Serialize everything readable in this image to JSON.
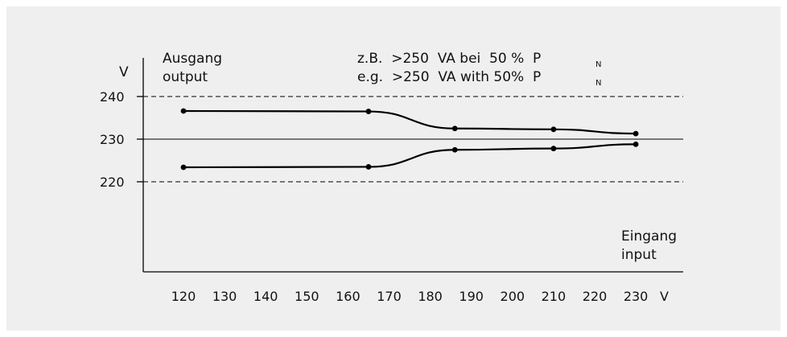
{
  "chart_data": {
    "type": "line",
    "title": "",
    "ylabel": "V",
    "xlabel": "V",
    "ylabel_lines": [
      "Ausgang",
      "output"
    ],
    "xlabel_lines": [
      "Eingang",
      "input"
    ],
    "annotation": {
      "line1": "z.B.  >250  VA bei  50 %  P",
      "line2": "e.g.  >250  VA with 50%  P",
      "subscript": "N"
    },
    "x_ticks": [
      120,
      130,
      140,
      150,
      160,
      170,
      180,
      190,
      200,
      210,
      220,
      230
    ],
    "y_ticks": [
      240,
      230,
      220
    ],
    "xlim": [
      115,
      235
    ],
    "ylim": [
      205,
      245
    ],
    "reference_lines": [
      {
        "y": 240,
        "style": "dashed"
      },
      {
        "y": 230,
        "style": "solid"
      },
      {
        "y": 220,
        "style": "dashed"
      }
    ],
    "series": [
      {
        "x": [
          120,
          165,
          186,
          210,
          230
        ],
        "values": [
          236.6,
          236.5,
          232.5,
          232.3,
          231.3
        ]
      },
      {
        "x": [
          120,
          165,
          186,
          210,
          230
        ],
        "values": [
          223.4,
          223.5,
          227.5,
          227.8,
          228.8
        ]
      }
    ],
    "colors": {
      "line": "#000000",
      "panel": "#efefef",
      "text": "#111111"
    }
  }
}
